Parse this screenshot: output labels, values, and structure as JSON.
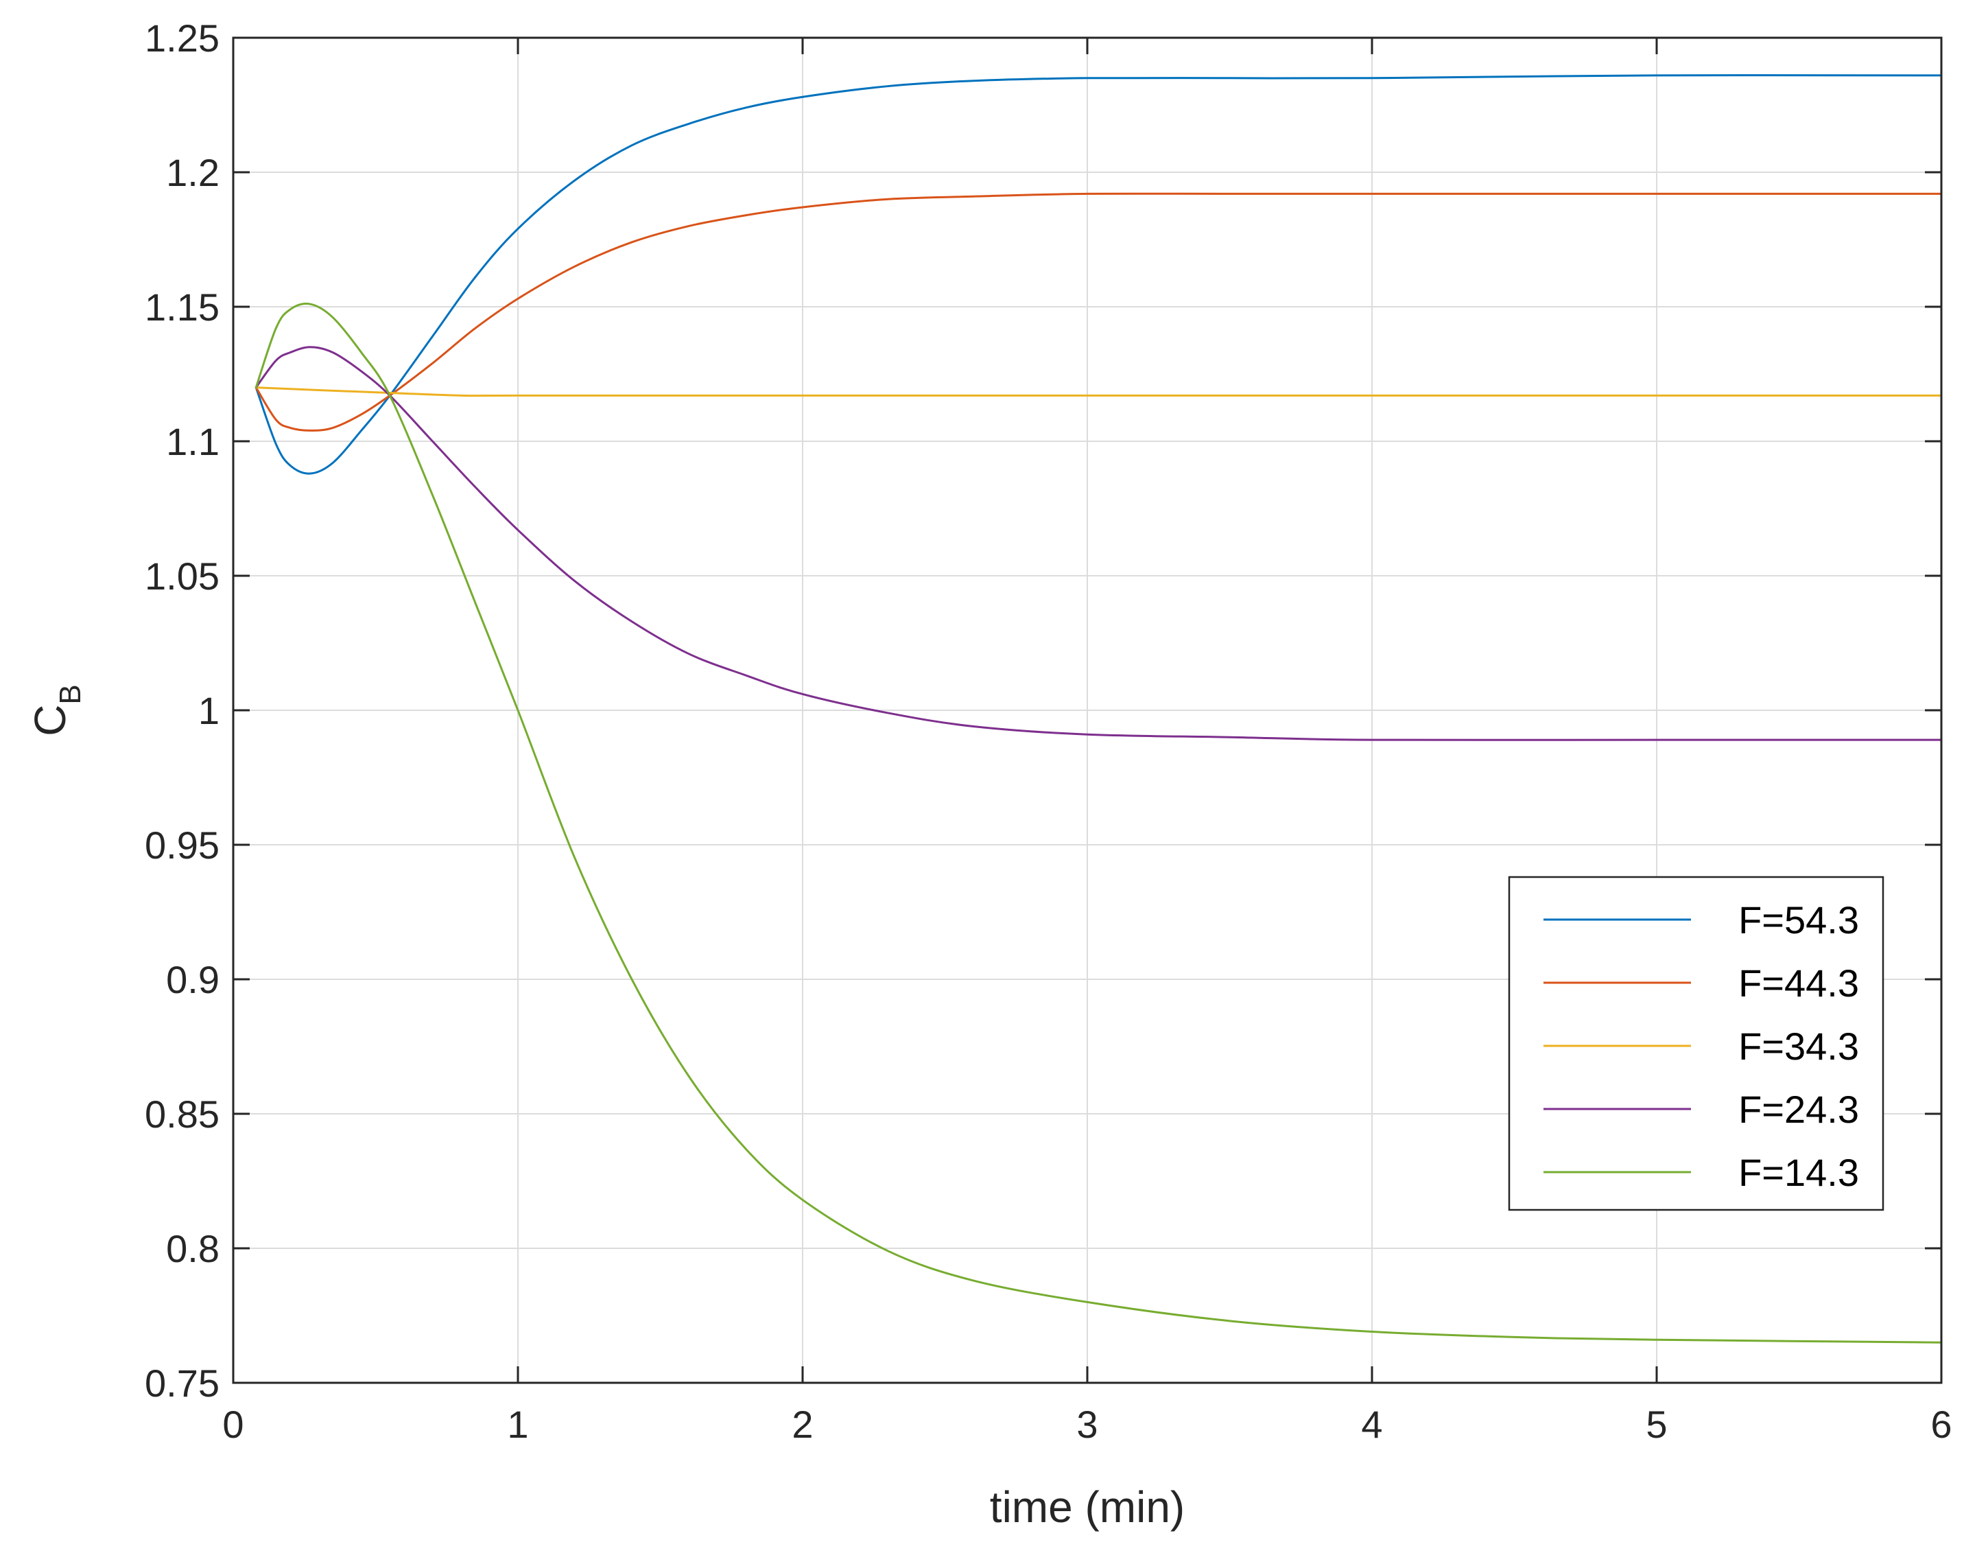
{
  "chart_data": {
    "type": "line",
    "title": "",
    "xlabel": "time (min)",
    "ylabel_main": "C",
    "ylabel_sub": "B",
    "xlim": [
      0,
      6
    ],
    "ylim": [
      0.75,
      1.25
    ],
    "x_ticks": [
      0,
      1,
      2,
      3,
      4,
      5,
      6
    ],
    "x_tick_labels": [
      "0",
      "1",
      "2",
      "3",
      "4",
      "5",
      "6"
    ],
    "y_ticks": [
      0.75,
      0.8,
      0.85,
      0.9,
      0.95,
      1.0,
      1.05,
      1.1,
      1.15,
      1.2,
      1.25
    ],
    "y_tick_labels": [
      "0.75",
      "0.8",
      "0.85",
      "0.9",
      "0.95",
      "1",
      "1.05",
      "1.1",
      "1.15",
      "1.2",
      "1.25"
    ],
    "grid": true,
    "legend_position": "right-center",
    "series": [
      {
        "name": "F=54.3",
        "color": "#0072BD",
        "x": [
          0.08,
          0.15,
          0.2,
          0.27,
          0.35,
          0.45,
          0.55,
          0.7,
          0.85,
          1.0,
          1.2,
          1.4,
          1.6,
          1.8,
          2.0,
          2.3,
          2.6,
          3.0,
          3.5,
          4.0,
          5.0,
          6.0
        ],
        "y": [
          1.12,
          1.099,
          1.091,
          1.088,
          1.092,
          1.104,
          1.117,
          1.139,
          1.161,
          1.179,
          1.197,
          1.21,
          1.218,
          1.224,
          1.228,
          1.232,
          1.234,
          1.235,
          1.235,
          1.235,
          1.236,
          1.236
        ]
      },
      {
        "name": "F=44.3",
        "color": "#D95319",
        "x": [
          0.08,
          0.15,
          0.2,
          0.27,
          0.35,
          0.45,
          0.55,
          0.7,
          0.85,
          1.0,
          1.2,
          1.4,
          1.6,
          1.8,
          2.0,
          2.3,
          2.6,
          3.0,
          3.5,
          4.0,
          5.0,
          6.0
        ],
        "y": [
          1.12,
          1.108,
          1.105,
          1.104,
          1.105,
          1.11,
          1.117,
          1.129,
          1.142,
          1.153,
          1.165,
          1.174,
          1.18,
          1.184,
          1.187,
          1.19,
          1.191,
          1.192,
          1.192,
          1.192,
          1.192,
          1.192
        ]
      },
      {
        "name": "F=34.3",
        "color": "#EDB120",
        "x": [
          0.08,
          0.3,
          0.55,
          0.8,
          1.0,
          2.0,
          3.0,
          4.0,
          5.0,
          6.0
        ],
        "y": [
          1.12,
          1.119,
          1.118,
          1.117,
          1.117,
          1.117,
          1.117,
          1.117,
          1.117,
          1.117
        ]
      },
      {
        "name": "F=24.3",
        "color": "#7E2F8E",
        "x": [
          0.08,
          0.15,
          0.2,
          0.27,
          0.35,
          0.45,
          0.55,
          0.7,
          0.85,
          1.0,
          1.2,
          1.4,
          1.6,
          1.8,
          2.0,
          2.3,
          2.6,
          3.0,
          3.5,
          4.0,
          5.0,
          6.0
        ],
        "y": [
          1.12,
          1.13,
          1.133,
          1.135,
          1.133,
          1.126,
          1.117,
          1.1,
          1.083,
          1.067,
          1.048,
          1.033,
          1.021,
          1.013,
          1.006,
          0.999,
          0.994,
          0.991,
          0.99,
          0.989,
          0.989,
          0.989
        ]
      },
      {
        "name": "F=14.3",
        "color": "#77AC30",
        "x": [
          0.08,
          0.15,
          0.2,
          0.27,
          0.35,
          0.45,
          0.55,
          0.7,
          0.85,
          1.0,
          1.2,
          1.4,
          1.6,
          1.8,
          2.0,
          2.3,
          2.6,
          3.0,
          3.5,
          4.0,
          4.5,
          5.0,
          6.0
        ],
        "y": [
          1.12,
          1.142,
          1.149,
          1.151,
          1.146,
          1.133,
          1.117,
          1.08,
          1.04,
          1.0,
          0.945,
          0.9,
          0.864,
          0.837,
          0.818,
          0.799,
          0.788,
          0.78,
          0.773,
          0.769,
          0.767,
          0.766,
          0.765
        ]
      }
    ]
  }
}
